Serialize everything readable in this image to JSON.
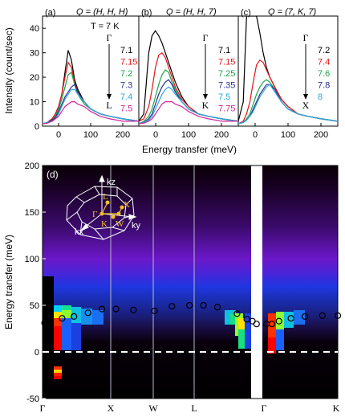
{
  "chart_data": [
    {
      "type": "line",
      "panel": "(a)",
      "q_title": "Q = (H, H, H)",
      "temperature": "T = 7 K",
      "ylabel": "Intensity (count/sec)",
      "xlim": [
        -50,
        250
      ],
      "ylim": [
        0,
        45
      ],
      "xticks": [
        "0",
        "100",
        "200"
      ],
      "yticks": [
        "0",
        "10",
        "20",
        "30",
        "40"
      ],
      "path_start": "Γ",
      "path_end": "L",
      "series": [
        {
          "name": "7.1",
          "color": "#000000",
          "x": [
            -50,
            -35,
            -20,
            -10,
            0,
            10,
            20,
            30,
            40,
            50,
            60,
            80,
            100,
            130,
            160,
            200,
            250
          ],
          "y": [
            1,
            1.5,
            3,
            5,
            8,
            13,
            22,
            31,
            27,
            19,
            15,
            10,
            7,
            5,
            4,
            3,
            2
          ]
        },
        {
          "name": "7.15",
          "color": "#e8131b",
          "x": [
            -50,
            -35,
            -20,
            -10,
            0,
            10,
            20,
            30,
            40,
            50,
            60,
            80,
            100,
            130,
            160,
            200,
            250
          ],
          "y": [
            1,
            1.5,
            3,
            5,
            8,
            13,
            20,
            26,
            24,
            18,
            14,
            10,
            7,
            5,
            4,
            3,
            2
          ]
        },
        {
          "name": "7.2",
          "color": "#1aa34a",
          "x": [
            -50,
            -35,
            -20,
            -10,
            0,
            10,
            20,
            30,
            40,
            50,
            60,
            80,
            100,
            130,
            160,
            200,
            250
          ],
          "y": [
            1,
            1.5,
            2.5,
            4,
            7,
            11,
            16,
            21,
            22,
            17,
            13,
            9,
            7,
            5,
            4,
            3,
            2
          ]
        },
        {
          "name": "7.3",
          "color": "#2b2f8e",
          "x": [
            -50,
            -35,
            -20,
            -10,
            0,
            10,
            20,
            30,
            40,
            50,
            60,
            80,
            100,
            130,
            160,
            200,
            250
          ],
          "y": [
            1,
            1.5,
            2.5,
            3.5,
            6,
            9,
            12,
            14,
            16,
            17,
            14,
            10,
            7,
            5,
            4,
            3,
            2
          ]
        },
        {
          "name": "7.4",
          "color": "#29a7de",
          "x": [
            -50,
            -35,
            -20,
            -10,
            0,
            10,
            20,
            30,
            40,
            50,
            60,
            80,
            100,
            130,
            160,
            200,
            250
          ],
          "y": [
            1,
            1.5,
            2,
            3,
            5,
            8,
            11,
            13,
            15,
            15,
            13,
            10,
            7,
            5,
            4,
            3,
            2
          ]
        },
        {
          "name": "7.5",
          "color": "#d0259a",
          "x": [
            -50,
            -35,
            -20,
            -10,
            0,
            10,
            20,
            30,
            40,
            50,
            60,
            80,
            100,
            130,
            160,
            200,
            250
          ],
          "y": [
            1,
            1.2,
            2,
            3,
            4,
            6,
            8,
            9,
            10,
            10,
            9,
            8,
            6,
            4,
            3,
            2,
            2
          ]
        }
      ]
    },
    {
      "type": "line",
      "panel": "(b)",
      "q_title": "Q = (H, H, 7)",
      "xlim": [
        -50,
        250
      ],
      "ylim": [
        0,
        45
      ],
      "xticks": [
        "0",
        "100",
        "200"
      ],
      "path_start": "Γ",
      "path_end": "K",
      "series": [
        {
          "name": "7.1",
          "color": "#000000",
          "x": [
            -50,
            -35,
            -20,
            -10,
            0,
            10,
            20,
            30,
            40,
            50,
            60,
            80,
            100,
            130,
            160,
            200,
            250
          ],
          "y": [
            2,
            5,
            30,
            37,
            39,
            37,
            34,
            30,
            26,
            22,
            18,
            12,
            8,
            5,
            4,
            3,
            2
          ]
        },
        {
          "name": "7.15",
          "color": "#e8131b",
          "x": [
            -50,
            -35,
            -20,
            -10,
            0,
            10,
            20,
            30,
            40,
            50,
            60,
            80,
            100,
            130,
            160,
            200,
            250
          ],
          "y": [
            2,
            3,
            8,
            15,
            24,
            29,
            30,
            28,
            24,
            20,
            16,
            11,
            8,
            5,
            4,
            3,
            2
          ]
        },
        {
          "name": "7.25",
          "color": "#1aa34a",
          "x": [
            -50,
            -35,
            -20,
            -10,
            0,
            10,
            20,
            30,
            40,
            50,
            60,
            80,
            100,
            130,
            160,
            200,
            250
          ],
          "y": [
            1,
            2,
            4,
            7,
            12,
            17,
            21,
            23,
            22,
            18,
            15,
            10,
            7,
            5,
            4,
            3,
            2
          ]
        },
        {
          "name": "7.35",
          "color": "#2b2f8e",
          "x": [
            -50,
            -35,
            -20,
            -10,
            0,
            10,
            20,
            30,
            40,
            50,
            60,
            80,
            100,
            130,
            160,
            200,
            250
          ],
          "y": [
            1,
            1.5,
            3,
            5,
            9,
            13,
            16,
            18,
            19,
            17,
            14,
            10,
            7,
            5,
            4,
            3,
            2
          ]
        },
        {
          "name": "7.5",
          "color": "#29a7de",
          "x": [
            -50,
            -35,
            -20,
            -10,
            0,
            10,
            20,
            30,
            40,
            50,
            60,
            80,
            100,
            130,
            160,
            200,
            250
          ],
          "y": [
            1,
            1.5,
            2.5,
            4,
            7,
            10,
            13,
            15,
            16,
            15,
            13,
            10,
            7,
            5,
            4,
            3,
            2
          ]
        },
        {
          "name": "7.75",
          "color": "#d0259a",
          "x": [
            -50,
            -35,
            -20,
            -10,
            0,
            10,
            20,
            30,
            40,
            50,
            60,
            80,
            100,
            130,
            160,
            200,
            250
          ],
          "y": [
            1,
            1.2,
            2,
            3,
            5,
            7,
            9,
            10,
            10,
            10,
            9,
            8,
            6,
            4,
            3,
            2,
            2
          ]
        }
      ]
    },
    {
      "type": "line",
      "panel": "(c)",
      "q_title": "Q = (7, K, 7)",
      "xlim": [
        -50,
        250
      ],
      "ylim": [
        0,
        45
      ],
      "xticks": [
        "0",
        "100",
        "200"
      ],
      "path_start": "Γ",
      "path_end": "X",
      "series": [
        {
          "name": "7.2",
          "color": "#000000",
          "x": [
            -50,
            -35,
            -25,
            -15,
            -5,
            5,
            15,
            25,
            35,
            45,
            60,
            80,
            100,
            130,
            160,
            200,
            250
          ],
          "y": [
            2,
            10,
            45,
            45,
            45,
            45,
            38,
            30,
            24,
            20,
            16,
            11,
            8,
            5,
            4,
            3,
            2
          ]
        },
        {
          "name": "7.4",
          "color": "#e8131b",
          "x": [
            -50,
            -35,
            -25,
            -15,
            -5,
            5,
            15,
            25,
            35,
            45,
            60,
            80,
            100,
            130,
            160,
            200,
            250
          ],
          "y": [
            1,
            2,
            5,
            10,
            18,
            25,
            27,
            26,
            23,
            20,
            16,
            11,
            8,
            5,
            4,
            3,
            2
          ]
        },
        {
          "name": "7.6",
          "color": "#1aa34a",
          "x": [
            -50,
            -35,
            -25,
            -15,
            -5,
            5,
            15,
            25,
            35,
            45,
            60,
            80,
            100,
            130,
            160,
            200,
            250
          ],
          "y": [
            1,
            1.5,
            3,
            5,
            9,
            13,
            16,
            18,
            19,
            18,
            15,
            10,
            7,
            5,
            4,
            3,
            2
          ]
        },
        {
          "name": "7.8",
          "color": "#2b2f8e",
          "x": [
            -50,
            -35,
            -25,
            -15,
            -5,
            5,
            15,
            25,
            35,
            45,
            60,
            80,
            100,
            130,
            160,
            200,
            250
          ],
          "y": [
            1,
            1.5,
            2.5,
            4,
            7,
            10,
            13,
            15,
            17,
            17,
            15,
            10,
            7,
            5,
            4,
            3,
            2
          ]
        },
        {
          "name": "8",
          "color": "#29a7de",
          "x": [
            -50,
            -35,
            -25,
            -15,
            -5,
            5,
            15,
            25,
            35,
            45,
            60,
            80,
            100,
            130,
            160,
            200,
            250
          ],
          "y": [
            1,
            1.5,
            2.5,
            4,
            6,
            9,
            12,
            14,
            16,
            17,
            14,
            10,
            7,
            5,
            4,
            3,
            2
          ]
        }
      ]
    },
    {
      "type": "heatmap",
      "panel": "(d)",
      "xlabel": "Energy transfer (meV)",
      "ylabel": "Energy transfer (meV)",
      "ylim": [
        -50,
        200
      ],
      "yticks": [
        "-50",
        "0",
        "50",
        "100",
        "150",
        "200"
      ],
      "path_labels": [
        "Γ",
        "X",
        "W",
        "L",
        "Γ",
        "K"
      ],
      "path_positions": [
        0,
        1,
        1.61,
        2.22,
        3.18,
        4.22
      ],
      "dispersion_points": {
        "path_coordinate": [
          0.03,
          0.1,
          0.28,
          0.45,
          0.65,
          0.85,
          1.05,
          1.3,
          1.6,
          1.85,
          2.1,
          2.3,
          2.5,
          2.78,
          2.92,
          3.0,
          3.06,
          3.2,
          3.28,
          3.38,
          3.55,
          3.75,
          4.0,
          4.22
        ],
        "energy_meV": [
          31,
          35,
          36,
          38,
          42,
          46,
          46,
          45,
          44,
          49,
          50,
          50,
          48,
          41,
          35,
          33,
          30,
          30,
          30,
          33,
          36,
          38,
          39,
          39
        ]
      },
      "inset_labels": [
        "kz",
        "kx",
        "ky",
        "Γ",
        "L",
        "K",
        "W",
        "X"
      ]
    }
  ]
}
